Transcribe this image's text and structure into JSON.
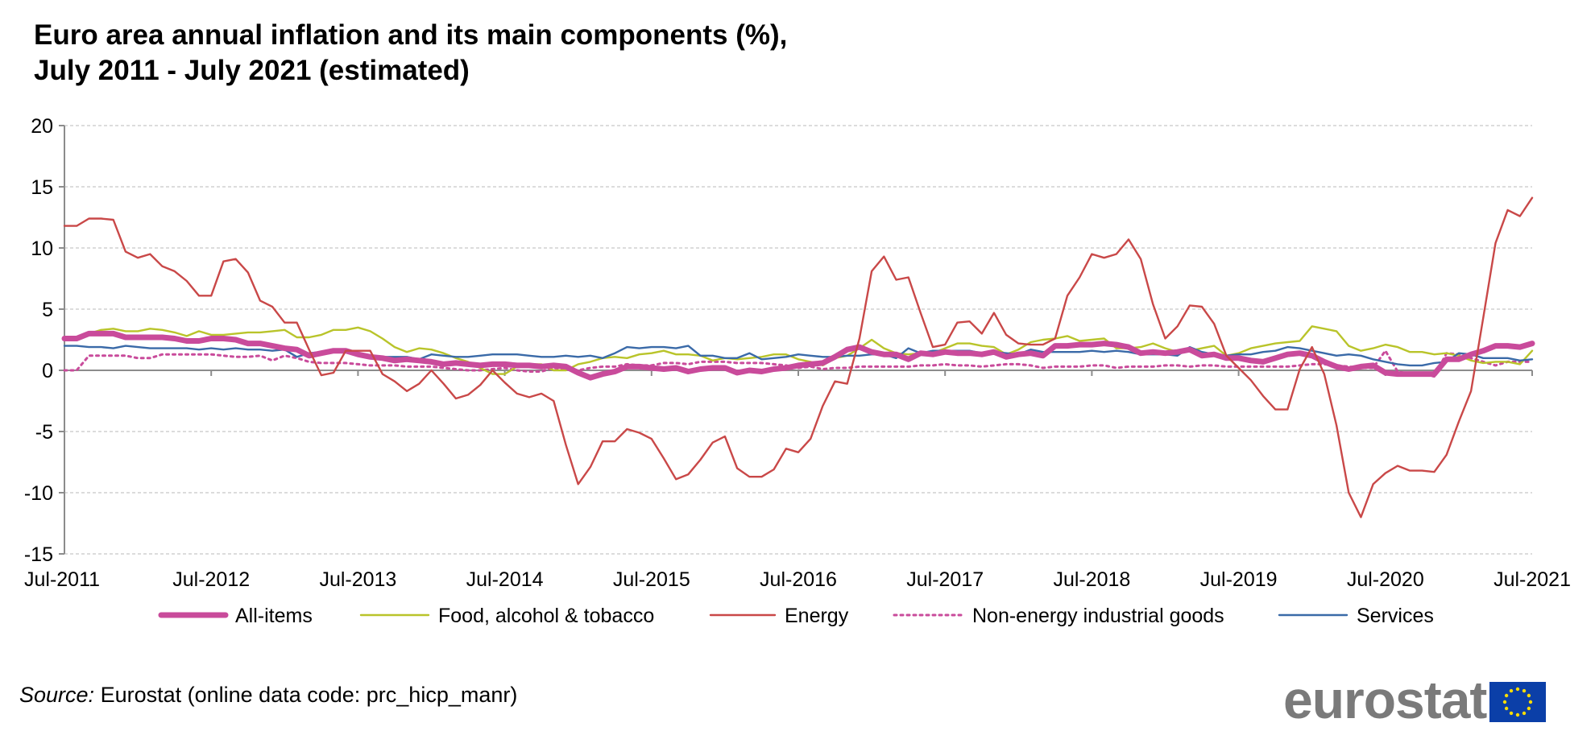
{
  "title_line1": "Euro area annual inflation and its main components (%),",
  "title_line2": "July 2011 - July 2021 (estimated)",
  "source_label": "Source:",
  "source_text": "Eurostat (online data code: prc_hicp_manr)",
  "logo_text": "eurostat",
  "colors": {
    "all_items": "#c94b9b",
    "food": "#b9c42a",
    "energy": "#c94848",
    "non_energy": "#c94b9b",
    "services": "#3a6aa8",
    "grid": "#b8b8b8",
    "axis": "#8c8c8c",
    "eu_blue": "#0b3fa8",
    "eu_star": "#ffdd00"
  },
  "chart_data": {
    "type": "line",
    "title": "Euro area annual inflation and its main components (%), July 2011 - July 2021 (estimated)",
    "xlabel": "",
    "ylabel": "",
    "ylim": [
      -15,
      20
    ],
    "yticks": [
      20,
      15,
      10,
      5,
      0,
      -5,
      -10,
      -15
    ],
    "x_start": "Jul-2011",
    "x_end": "Jul-2021",
    "n_points": 121,
    "x_tick_labels": [
      "Jul-2011",
      "Jul-2012",
      "Jul-2013",
      "Jul-2014",
      "Jul-2015",
      "Jul-2016",
      "Jul-2017",
      "Jul-2018",
      "Jul-2019",
      "Jul-2020",
      "Jul-2021"
    ],
    "legend_position": "bottom",
    "series": [
      {
        "name": "All-items",
        "style": "thick",
        "values": [
          2.6,
          2.6,
          3.0,
          3.0,
          3.0,
          2.7,
          2.7,
          2.7,
          2.7,
          2.6,
          2.4,
          2.4,
          2.6,
          2.6,
          2.5,
          2.2,
          2.2,
          2.0,
          1.8,
          1.7,
          1.2,
          1.4,
          1.6,
          1.6,
          1.3,
          1.1,
          1.0,
          0.8,
          0.9,
          0.8,
          0.7,
          0.5,
          0.6,
          0.5,
          0.4,
          0.5,
          0.5,
          0.4,
          0.4,
          0.3,
          0.4,
          0.3,
          -0.2,
          -0.6,
          -0.3,
          -0.1,
          0.3,
          0.3,
          0.2,
          0.1,
          0.2,
          -0.1,
          0.1,
          0.2,
          0.2,
          -0.2,
          0.0,
          -0.1,
          0.1,
          0.2,
          0.4,
          0.5,
          0.6,
          1.1,
          1.7,
          1.9,
          1.5,
          1.3,
          1.3,
          0.9,
          1.4,
          1.3,
          1.5,
          1.4,
          1.4,
          1.3,
          1.5,
          1.1,
          1.3,
          1.4,
          1.2,
          2.0,
          2.0,
          2.1,
          2.1,
          2.2,
          2.1,
          1.9,
          1.4,
          1.5,
          1.4,
          1.5,
          1.7,
          1.2,
          1.3,
          1.0,
          1.0,
          0.8,
          0.7,
          1.0,
          1.3,
          1.4,
          1.2,
          0.7,
          0.3,
          0.1,
          0.3,
          0.4,
          -0.2,
          -0.3,
          -0.3,
          -0.3,
          -0.3,
          0.9,
          0.9,
          1.3,
          1.6,
          2.0,
          2.0,
          1.9,
          2.2
        ]
      },
      {
        "name": "Food, alcohol & tobacco",
        "style": "thin",
        "values": [
          2.7,
          2.7,
          3.0,
          3.3,
          3.4,
          3.2,
          3.2,
          3.4,
          3.3,
          3.1,
          2.8,
          3.2,
          2.9,
          2.9,
          3.0,
          3.1,
          3.1,
          3.2,
          3.3,
          2.7,
          2.7,
          2.9,
          3.3,
          3.3,
          3.5,
          3.2,
          2.6,
          1.9,
          1.5,
          1.8,
          1.7,
          1.4,
          1.0,
          0.7,
          0.2,
          -0.3,
          -0.3,
          0.3,
          0.5,
          0.5,
          0.0,
          0.0,
          0.5,
          0.7,
          1.0,
          1.1,
          1.0,
          1.3,
          1.4,
          1.6,
          1.3,
          1.3,
          1.2,
          0.8,
          1.0,
          0.9,
          1.0,
          1.1,
          1.3,
          1.3,
          0.9,
          0.7,
          0.4,
          1.0,
          1.2,
          1.8,
          2.5,
          1.8,
          1.4,
          1.3,
          1.4,
          1.4,
          1.8,
          2.2,
          2.2,
          2.0,
          1.9,
          1.3,
          1.7,
          2.3,
          2.5,
          2.6,
          2.8,
          2.4,
          2.5,
          2.6,
          1.8,
          1.8,
          1.9,
          2.2,
          1.8,
          1.5,
          1.6,
          1.8,
          2.0,
          1.2,
          1.4,
          1.8,
          2.0,
          2.2,
          2.3,
          2.4,
          3.6,
          3.4,
          3.2,
          2.0,
          1.6,
          1.8,
          2.1,
          1.9,
          1.5,
          1.5,
          1.3,
          1.4,
          1.2,
          0.8,
          0.6,
          0.7,
          0.7,
          0.5,
          1.6
        ]
      },
      {
        "name": "Energy",
        "style": "thin",
        "values": [
          11.8,
          11.8,
          12.4,
          12.4,
          12.3,
          9.7,
          9.2,
          9.5,
          8.5,
          8.1,
          7.3,
          6.1,
          6.1,
          8.9,
          9.1,
          8.0,
          5.7,
          5.2,
          3.9,
          3.9,
          1.7,
          -0.4,
          -0.2,
          1.6,
          1.6,
          1.6,
          -0.3,
          -0.9,
          -1.7,
          -1.1,
          0.0,
          -1.1,
          -2.3,
          -2.0,
          -1.2,
          0.0,
          -1.0,
          -1.9,
          -2.2,
          -1.9,
          -2.5,
          -6.1,
          -9.3,
          -7.9,
          -5.8,
          -5.8,
          -4.8,
          -5.1,
          -5.6,
          -7.2,
          -8.9,
          -8.5,
          -7.3,
          -5.9,
          -5.4,
          -8.0,
          -8.7,
          -8.7,
          -8.1,
          -6.4,
          -6.7,
          -5.6,
          -2.9,
          -0.9,
          -1.1,
          2.6,
          8.1,
          9.3,
          7.4,
          7.6,
          4.7,
          1.9,
          2.1,
          3.9,
          4.0,
          3.0,
          4.7,
          2.9,
          2.2,
          2.1,
          2.1,
          2.6,
          6.1,
          7.6,
          9.5,
          9.2,
          9.5,
          10.7,
          9.1,
          5.4,
          2.6,
          3.6,
          5.3,
          5.2,
          3.8,
          1.2,
          0.2,
          -0.8,
          -2.1,
          -3.2,
          -3.2,
          0.1,
          1.9,
          -0.3,
          -4.5,
          -10.0,
          -12.0,
          -9.3,
          -8.4,
          -7.8,
          -8.2,
          -8.2,
          -8.3,
          -6.9,
          -4.2,
          -1.7,
          4.3,
          10.4,
          13.1,
          12.6,
          14.1
        ]
      },
      {
        "name": "Non-energy industrial goods",
        "style": "dotted",
        "values": [
          0.0,
          0.0,
          1.2,
          1.2,
          1.2,
          1.2,
          1.0,
          1.0,
          1.3,
          1.3,
          1.3,
          1.3,
          1.3,
          1.2,
          1.1,
          1.1,
          1.2,
          0.8,
          1.2,
          1.0,
          0.7,
          0.6,
          0.6,
          0.6,
          0.5,
          0.4,
          0.4,
          0.4,
          0.3,
          0.3,
          0.3,
          0.2,
          0.1,
          0.0,
          0.0,
          0.1,
          0.2,
          0.0,
          -0.1,
          -0.1,
          0.2,
          0.1,
          0.0,
          0.2,
          0.3,
          0.3,
          0.5,
          0.4,
          0.4,
          0.6,
          0.6,
          0.5,
          0.7,
          0.7,
          0.7,
          0.6,
          0.6,
          0.6,
          0.5,
          0.4,
          0.2,
          0.3,
          0.1,
          0.2,
          0.2,
          0.3,
          0.3,
          0.3,
          0.3,
          0.3,
          0.4,
          0.4,
          0.5,
          0.4,
          0.4,
          0.3,
          0.4,
          0.5,
          0.5,
          0.4,
          0.2,
          0.3,
          0.3,
          0.3,
          0.4,
          0.4,
          0.2,
          0.3,
          0.3,
          0.3,
          0.4,
          0.4,
          0.3,
          0.4,
          0.4,
          0.3,
          0.3,
          0.3,
          0.3,
          0.3,
          0.3,
          0.4,
          0.5,
          0.5,
          0.4,
          0.3,
          0.2,
          0.2,
          1.6,
          -0.1,
          -0.3,
          -0.3,
          -0.5,
          1.4,
          1.3,
          1.0,
          0.7,
          0.4,
          0.7,
          0.7,
          0.7
        ]
      },
      {
        "name": "Services",
        "style": "thin",
        "values": [
          2.0,
          2.0,
          1.9,
          1.9,
          1.8,
          2.0,
          1.9,
          1.8,
          1.8,
          1.8,
          1.8,
          1.7,
          1.8,
          1.7,
          1.8,
          1.7,
          1.7,
          1.6,
          1.7,
          1.1,
          1.4,
          1.5,
          1.5,
          1.5,
          1.3,
          1.2,
          1.1,
          1.1,
          1.1,
          0.9,
          1.3,
          1.2,
          1.1,
          1.1,
          1.2,
          1.3,
          1.3,
          1.3,
          1.2,
          1.1,
          1.1,
          1.2,
          1.1,
          1.2,
          1.0,
          1.4,
          1.9,
          1.8,
          1.9,
          1.9,
          1.8,
          2.0,
          1.2,
          1.2,
          1.0,
          1.0,
          1.4,
          0.9,
          1.0,
          1.1,
          1.3,
          1.2,
          1.1,
          1.1,
          1.2,
          1.2,
          1.3,
          1.3,
          1.0,
          1.8,
          1.4,
          1.6,
          1.6,
          1.6,
          1.6,
          1.4,
          1.5,
          1.4,
          1.3,
          1.7,
          1.5,
          1.5,
          1.5,
          1.5,
          1.6,
          1.5,
          1.6,
          1.5,
          1.3,
          1.3,
          1.3,
          1.2,
          1.9,
          1.5,
          1.3,
          1.2,
          1.3,
          1.3,
          1.5,
          1.6,
          1.9,
          1.8,
          1.6,
          1.4,
          1.2,
          1.3,
          1.2,
          0.9,
          0.7,
          0.5,
          0.4,
          0.4,
          0.6,
          0.7,
          1.4,
          1.3,
          1.0,
          1.0,
          1.0,
          0.8,
          0.9
        ]
      }
    ]
  }
}
